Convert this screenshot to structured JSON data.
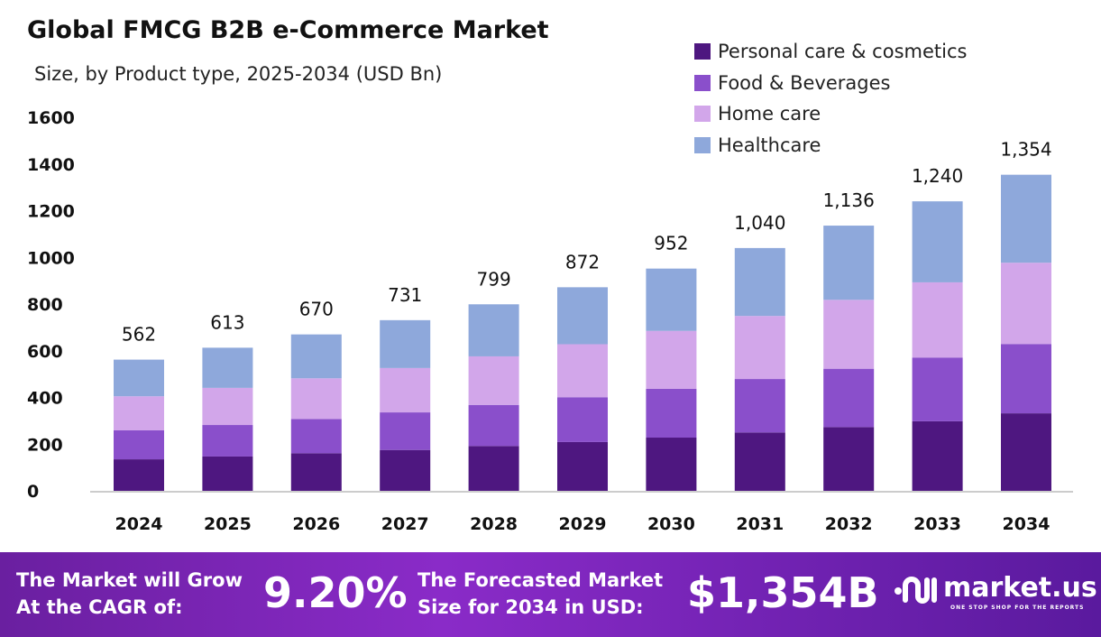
{
  "chart_data": {
    "type": "bar",
    "stacked": true,
    "title": "Global FMCG B2B e-Commerce Market",
    "subtitle": "Size, by Product type, 2025-2034 (USD Bn)",
    "categories": [
      "2024",
      "2025",
      "2026",
      "2027",
      "2028",
      "2029",
      "2030",
      "2031",
      "2032",
      "2033",
      "2034"
    ],
    "totals": [
      "562",
      "613",
      "670",
      "731",
      "799",
      "872",
      "952",
      "1,040",
      "1,136",
      "1,240",
      "1,354"
    ],
    "series": [
      {
        "name": "Personal care & cosmetics",
        "color": "#4e1780",
        "values": [
          135,
          147,
          161,
          175,
          192,
          209,
          228,
          250,
          273,
          298,
          332
        ]
      },
      {
        "name": "Food & Beverages",
        "color": "#8a4fcb",
        "values": [
          124,
          135,
          147,
          161,
          176,
          192,
          209,
          229,
          250,
          273,
          297
        ]
      },
      {
        "name": "Home care",
        "color": "#d2a6ea",
        "values": [
          146,
          159,
          174,
          190,
          208,
          227,
          248,
          270,
          295,
          322,
          348
        ]
      },
      {
        "name": "Healthcare",
        "color": "#8ea8db",
        "values": [
          157,
          172,
          188,
          205,
          223,
          244,
          267,
          291,
          318,
          347,
          377
        ]
      }
    ],
    "yticks": [
      "0",
      "200",
      "400",
      "600",
      "800",
      "1000",
      "1200",
      "1400",
      "1600"
    ],
    "ylim": [
      0,
      1600
    ],
    "grid": false,
    "legend": "top-right"
  },
  "footer": {
    "cagr_label_1": "The Market will Grow",
    "cagr_label_2": "At the CAGR of:",
    "cagr_value": "9.20%",
    "forecast_label_1": "The Forecasted Market",
    "forecast_label_2": "Size for 2034 in USD:",
    "forecast_value": "$1,354B",
    "logo_text": "market.us",
    "logo_tagline": "ONE STOP SHOP FOR THE REPORTS"
  }
}
